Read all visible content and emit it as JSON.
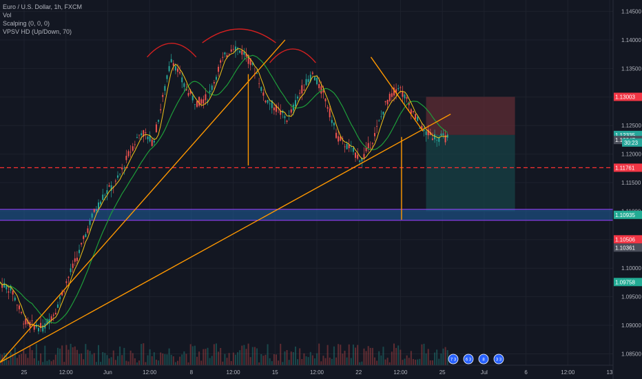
{
  "legend": {
    "title": "Euro / U.S. Dollar, 1h, FXCM",
    "vol": "Vol",
    "scalping": "Scalping (0, 0, 0)",
    "vpsv": "VPSV HD (Up/Down, 70)"
  },
  "colors": {
    "background": "#131722",
    "grid": "#1e222d",
    "axis_text": "#b2b5be",
    "line_orange": "#ff9800",
    "ma_green": "#1e9e3a",
    "ma_yellow": "#f5c518",
    "red_dashed": "#ff3030",
    "zone_blue": "#1f5f9e",
    "zone_purple": "#9c3fff",
    "stop_zone": "#5a2a33",
    "target_zone": "#163f44",
    "candle_up": "#26a69a",
    "candle_down": "#ef5350"
  },
  "chart_data": {
    "type": "candlestick",
    "symbol": "Euro / U.S. Dollar",
    "interval": "1h",
    "source": "FXCM",
    "indicators": [
      "Vol",
      "Scalping (0, 0, 0)",
      "VPSV HD (Up/Down, 70)"
    ],
    "ylim": [
      1.083,
      1.147
    ],
    "y_ticks": [
      1.085,
      1.09,
      1.095,
      1.1,
      1.105,
      1.11,
      1.115,
      1.12,
      1.125,
      1.13,
      1.135,
      1.14,
      1.145
    ],
    "y_tick_labels": [
      "1.08500",
      "1.09000",
      "1.09500",
      "1.10000",
      "1.10500",
      "1.11000",
      "1.11500",
      "1.12000",
      "1.12500",
      "1.13000",
      "1.13500",
      "1.14000",
      "1.14500"
    ],
    "x_tick_labels": [
      "25",
      "12:00",
      "Jun",
      "12:00",
      "8",
      "12:00",
      "15",
      "12:00",
      "22",
      "12:00",
      "25",
      "Jul",
      "6",
      "12:00",
      "13"
    ],
    "price_tags": [
      {
        "value": 1.13003,
        "label": "1.13003",
        "color": "#f23645"
      },
      {
        "value": 1.12335,
        "label": "1.12335",
        "color": "#26a69a"
      },
      {
        "value": 1.12247,
        "label": "1.12247",
        "color": "#4a4e5a"
      },
      {
        "value": 1.11761,
        "label": "1.11761",
        "color": "#f23645"
      },
      {
        "value": 1.10935,
        "label": "1.10935",
        "color": "#22ab94"
      },
      {
        "value": 1.10506,
        "label": "1.10506",
        "color": "#f23645"
      },
      {
        "value": 1.10361,
        "label": "1.10361",
        "color": "#4a4e5a"
      },
      {
        "value": 1.09758,
        "label": "1.09758",
        "color": "#22ab94"
      }
    ],
    "countdown": "30:23",
    "horizontal_levels": [
      {
        "value": 1.11761,
        "style": "dashed",
        "color": "#ff3030"
      },
      {
        "value": 1.10935,
        "style": "band",
        "color": "#1f5f9e"
      }
    ],
    "position_tool": {
      "entry": 1.12335,
      "stop": 1.13003,
      "target": 1.11
    },
    "price_path": [
      [
        0,
        1.0975
      ],
      [
        0.02,
        1.096
      ],
      [
        0.04,
        1.0905
      ],
      [
        0.07,
        1.0895
      ],
      [
        0.09,
        1.0925
      ],
      [
        0.11,
        1.098
      ],
      [
        0.13,
        1.103
      ],
      [
        0.15,
        1.109
      ],
      [
        0.17,
        1.113
      ],
      [
        0.19,
        1.115
      ],
      [
        0.21,
        1.12
      ],
      [
        0.23,
        1.124
      ],
      [
        0.25,
        1.122
      ],
      [
        0.27,
        1.132
      ],
      [
        0.28,
        1.137
      ],
      [
        0.3,
        1.132
      ],
      [
        0.32,
        1.129
      ],
      [
        0.34,
        1.13
      ],
      [
        0.36,
        1.136
      ],
      [
        0.38,
        1.139
      ],
      [
        0.4,
        1.1375
      ],
      [
        0.42,
        1.134
      ],
      [
        0.43,
        1.13
      ],
      [
        0.45,
        1.128
      ],
      [
        0.47,
        1.126
      ],
      [
        0.49,
        1.131
      ],
      [
        0.51,
        1.134
      ],
      [
        0.53,
        1.13
      ],
      [
        0.55,
        1.123
      ],
      [
        0.57,
        1.121
      ],
      [
        0.59,
        1.119
      ],
      [
        0.61,
        1.123
      ],
      [
        0.63,
        1.129
      ],
      [
        0.65,
        1.132
      ],
      [
        0.67,
        1.128
      ],
      [
        0.69,
        1.124
      ],
      [
        0.71,
        1.123
      ],
      [
        0.73,
        1.1228
      ]
    ]
  },
  "event_badges": [
    "7 3",
    "6 3",
    "8",
    "3 3"
  ]
}
